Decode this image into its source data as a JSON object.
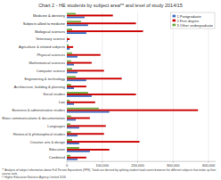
{
  "chart_data": {
    "type": "bar",
    "orientation": "horizontal",
    "title": "Chart 2 - HE students by subject area** and level of study 2014/15",
    "footnotes": [
      "** Analysis of subject information above Full Person Equivalents (FPE). Totals are derived by splitting student load counts between the different subjects that make up their course units",
      "© Higher Education Statistics Agency Limited 2016"
    ],
    "categories": [
      "Medicine & dentistry",
      "Subjects allied to medicine",
      "Biological sciences",
      "Veterinary science",
      "Agriculture & related subjects",
      "Physical sciences",
      "Mathematical sciences",
      "Computer science",
      "Engineering & technology",
      "Architecture, building & planning",
      "Social studies",
      "Law",
      "Business & administrative studies",
      "Mass communications & documentation",
      "Languages",
      "Historical & philosophical studies",
      "Creative arts & design",
      "Education",
      "Combined"
    ],
    "series": [
      {
        "name": "1 Postgraduate",
        "color": "#4472c4",
        "values": [
          50000,
          60000,
          55000,
          2000,
          8000,
          30000,
          20000,
          30000,
          55000,
          20000,
          70000,
          20000,
          120000,
          25000,
          35000,
          30000,
          35000,
          65000,
          30000
        ]
      },
      {
        "name": "2 First degree",
        "color": "#cc0000",
        "values": [
          130000,
          195000,
          215000,
          8000,
          18000,
          95000,
          70000,
          105000,
          155000,
          55000,
          195000,
          80000,
          370000,
          65000,
          110000,
          105000,
          205000,
          120000,
          55000
        ]
      },
      {
        "name": "3 Other undergraduate",
        "color": "#70ad47",
        "values": [
          25000,
          40000,
          15000,
          1000,
          5000,
          15000,
          12000,
          15000,
          25000,
          12000,
          60000,
          8000,
          90000,
          12000,
          10000,
          12000,
          15000,
          35000,
          10000
        ]
      }
    ],
    "xlim": [
      0,
      420000
    ],
    "xticks": [
      0,
      {
        "value": 100000,
        "label": "100,000"
      },
      {
        "value": 200000,
        "label": "200,000"
      },
      {
        "value": 300000,
        "label": "300,000"
      },
      {
        "value": 400000,
        "label": "400,000"
      }
    ],
    "grid": true,
    "legend": "upper right"
  }
}
